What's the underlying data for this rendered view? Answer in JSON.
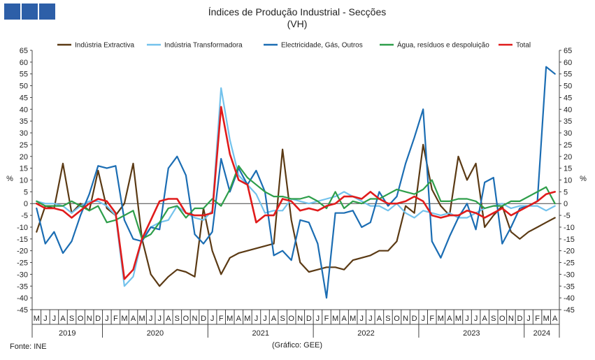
{
  "logo": {
    "icon": "gee-logo-icon",
    "color": "#2d5fa8"
  },
  "chart_data": {
    "type": "line",
    "title": "Índices de Produção Industrial - Secções",
    "subtitle": "(VH)",
    "ylabel_left": "%",
    "ylabel_right": "%",
    "ylim": [
      -45,
      65
    ],
    "yticks": [
      -45,
      -40,
      -35,
      -30,
      -25,
      -20,
      -15,
      -10,
      -5,
      0,
      5,
      10,
      15,
      20,
      25,
      30,
      35,
      40,
      45,
      50,
      55,
      60,
      65
    ],
    "legend_position": "top",
    "source": "Fonte: INE",
    "note": "(Gráfico: GEE)",
    "months": [
      "M",
      "J",
      "J",
      "A",
      "S",
      "O",
      "N",
      "D",
      "J",
      "F",
      "M",
      "A",
      "M",
      "J",
      "J",
      "A",
      "S",
      "O",
      "N",
      "D",
      "J",
      "F",
      "M",
      "A",
      "M",
      "J",
      "J",
      "A",
      "S",
      "O",
      "N",
      "D",
      "J",
      "F",
      "M",
      "A",
      "M",
      "J",
      "J",
      "A",
      "S",
      "O",
      "N",
      "D",
      "J",
      "F",
      "M",
      "A",
      "M",
      "J",
      "J",
      "A",
      "S",
      "O",
      "N",
      "D",
      "J",
      "F",
      "M",
      "A"
    ],
    "years": [
      {
        "label": "2019",
        "start": 0,
        "end": 8
      },
      {
        "label": "2020",
        "start": 8,
        "end": 20
      },
      {
        "label": "2021",
        "start": 20,
        "end": 32
      },
      {
        "label": "2022",
        "start": 32,
        "end": 44
      },
      {
        "label": "2023",
        "start": 44,
        "end": 56
      },
      {
        "label": "2024",
        "start": 56,
        "end": 60
      }
    ],
    "series": [
      {
        "name": "Indústria Extractiva",
        "color": "#5b3a14",
        "values": [
          -12,
          -1,
          -2,
          17,
          -4,
          0,
          -3,
          14,
          -2,
          -5,
          0,
          17,
          -15,
          -30,
          -35,
          -31,
          -28,
          -29,
          -31,
          -2,
          -20,
          -30,
          -23,
          -21,
          -20,
          -19,
          -18,
          -17,
          23,
          -7,
          -25,
          -29,
          -28,
          -27,
          -27,
          -28,
          -24,
          -23,
          -22,
          -20,
          -20,
          -16,
          -1,
          -4,
          25,
          6,
          -1,
          -5,
          20,
          10,
          17,
          -10,
          -5,
          -1,
          -12,
          -15,
          -12,
          -10,
          -8,
          -6
        ]
      },
      {
        "name": "Indústria Transformadora",
        "color": "#73c2ec",
        "values": [
          1,
          0,
          0,
          -1,
          -4,
          -1,
          1,
          1,
          -1,
          -5,
          -35,
          -31,
          -15,
          -10,
          -8,
          -7,
          -1,
          -4,
          -6,
          -7,
          -3,
          49,
          27,
          12,
          8,
          4,
          -4,
          -3,
          -3,
          2,
          1,
          0,
          1,
          2,
          3,
          5,
          3,
          1,
          -1,
          -1,
          -3,
          0,
          -4,
          -6,
          -3,
          -4,
          -5,
          -4,
          -6,
          -6,
          -4,
          -2,
          -1,
          0,
          -2,
          -1,
          -1,
          -1,
          -3,
          -1
        ]
      },
      {
        "name": "Electricidade, Gás, Outros",
        "color": "#1b6db3",
        "values": [
          -2,
          -17,
          -12,
          -21,
          -16,
          -5,
          4,
          16,
          15,
          16,
          -7,
          -15,
          -16,
          -10,
          -11,
          15,
          20,
          12,
          -13,
          -17,
          -12,
          19,
          5,
          15,
          8,
          14,
          5,
          -22,
          -20,
          -24,
          -7,
          -8,
          -17,
          -40,
          -4,
          -4,
          -3,
          -10,
          -8,
          5,
          -1,
          3,
          17,
          28,
          40,
          -16,
          -23,
          -14,
          -6,
          0,
          -11,
          9,
          11,
          -17,
          -10,
          -2,
          -1,
          1,
          58,
          55
        ]
      },
      {
        "name": "Água, resíduos e despoluição",
        "color": "#2e9e4a",
        "values": [
          1,
          -1,
          -1,
          -1,
          1,
          -1,
          -3,
          -1,
          -8,
          -7,
          -5,
          -3,
          -15,
          -13,
          -8,
          -2,
          -1,
          -6,
          -2,
          -2,
          2,
          -1,
          6,
          16,
          11,
          8,
          5,
          3,
          3,
          2,
          2,
          3,
          1,
          -2,
          5,
          -2,
          1,
          0,
          2,
          2,
          4,
          6,
          5,
          4,
          6,
          10,
          1,
          1,
          2,
          2,
          1,
          -2,
          -1,
          -1,
          1,
          1,
          3,
          5,
          7,
          0
        ]
      },
      {
        "name": "Total",
        "color": "#e01b1b",
        "values": [
          0,
          -2,
          -2,
          -3,
          -6,
          -3,
          0,
          2,
          1,
          -4,
          -32,
          -28,
          -15,
          -7,
          1,
          2,
          2,
          -4,
          -5,
          -5,
          -4,
          41,
          21,
          10,
          8,
          -8,
          -5,
          -5,
          2,
          1,
          -3,
          -2,
          -3,
          -1,
          0,
          3,
          3,
          2,
          5,
          2,
          0,
          0,
          1,
          3,
          1,
          -5,
          -6,
          -5,
          -5,
          -3,
          -4,
          -6,
          -4,
          -2,
          -5,
          -3,
          -1,
          1,
          4,
          5
        ]
      }
    ]
  }
}
